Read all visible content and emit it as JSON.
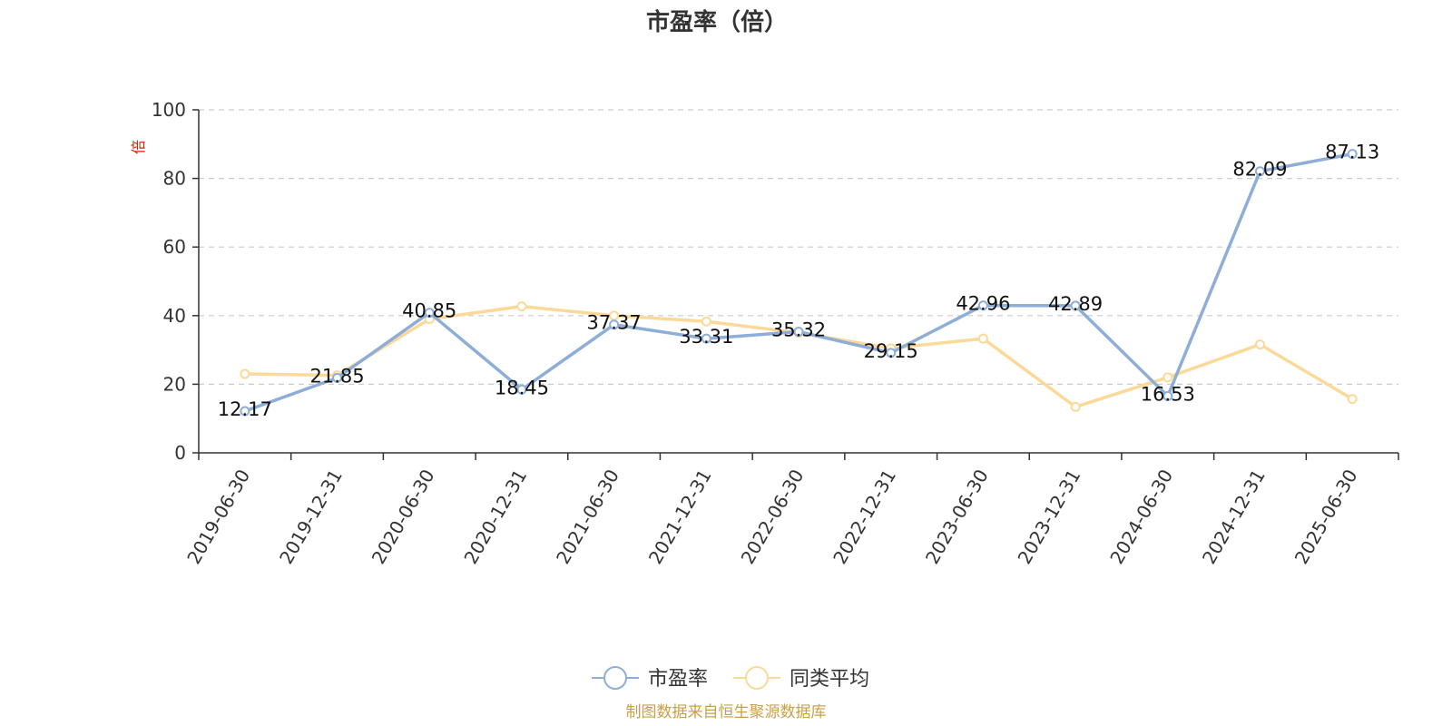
{
  "chart_data": {
    "type": "line",
    "title": "市盈率（倍）",
    "ylabel": "倍",
    "categories": [
      "2019-06-30",
      "2019-12-31",
      "2020-06-30",
      "2020-12-31",
      "2021-06-30",
      "2021-12-31",
      "2022-06-30",
      "2022-12-31",
      "2023-06-30",
      "2023-12-31",
      "2024-06-30",
      "2024-12-31",
      "2025-06-30"
    ],
    "ylim": [
      0,
      100
    ],
    "yticks": [
      0,
      20,
      40,
      60,
      80,
      100
    ],
    "grid": true,
    "legend_position": "bottom",
    "series": [
      {
        "name": "市盈率",
        "color": "#8eaed8",
        "show_labels": true,
        "values": [
          12.17,
          21.85,
          40.85,
          18.45,
          37.37,
          33.31,
          35.32,
          29.15,
          42.96,
          42.89,
          16.53,
          82.09,
          87.13
        ]
      },
      {
        "name": "同类平均",
        "color": "#fbd999",
        "show_labels": false,
        "values": [
          23.0,
          22.6,
          39.0,
          42.7,
          40.0,
          38.3,
          35.0,
          30.5,
          33.3,
          13.4,
          22.0,
          31.6,
          15.7
        ]
      }
    ],
    "source": "制图数据来自恒生聚源数据库"
  }
}
